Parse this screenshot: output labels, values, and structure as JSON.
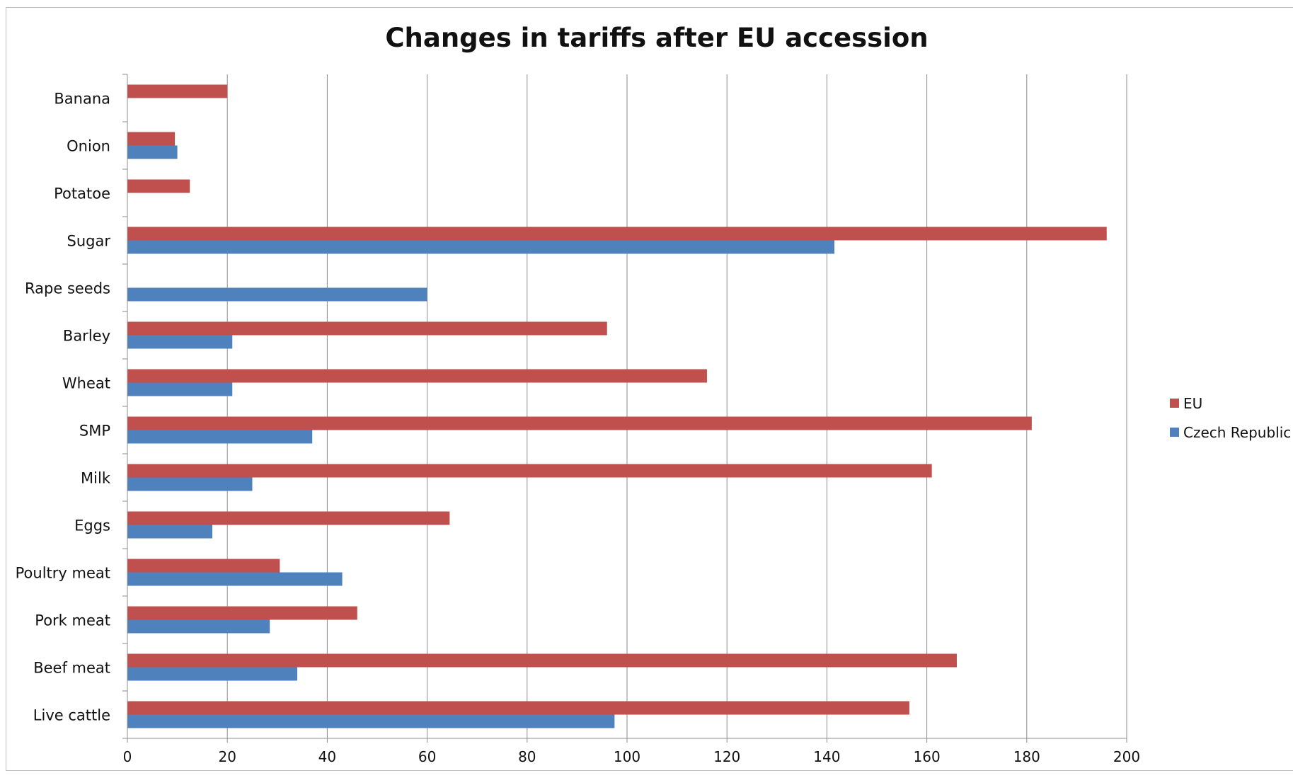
{
  "chart_data": {
    "type": "bar",
    "orientation": "horizontal",
    "title": "Changes in tariffs after EU accession",
    "xlabel": "",
    "ylabel": "",
    "xlim": [
      0,
      200
    ],
    "x_ticks": [
      0,
      20,
      40,
      60,
      80,
      100,
      120,
      140,
      160,
      180,
      200
    ],
    "grid": "vertical",
    "legend_position": "right",
    "categories": [
      "Banana",
      "Onion",
      "Potatoe",
      "Sugar",
      "Rape seeds",
      "Barley",
      "Wheat",
      "SMP",
      "Milk",
      "Eggs",
      "Poultry meat",
      "Pork meat",
      "Beef meat",
      "Live cattle"
    ],
    "series": [
      {
        "name": "EU",
        "color": "#c0504d",
        "values": [
          20,
          9.5,
          12.5,
          196,
          0,
          96,
          116,
          181,
          161,
          64.5,
          30.5,
          46,
          166,
          156.5
        ]
      },
      {
        "name": "Czech Republic",
        "color": "#4f81bd",
        "values": [
          0,
          10,
          0,
          141.5,
          60,
          21,
          21,
          37,
          25,
          17,
          43,
          28.5,
          34,
          97.5
        ]
      }
    ],
    "series_values_note": ""
  }
}
